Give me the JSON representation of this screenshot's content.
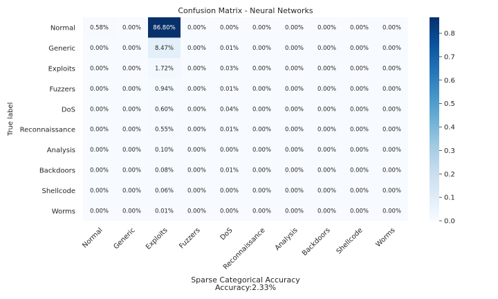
{
  "chart_data": {
    "type": "heatmap",
    "title": "Confusion Matrix - Neural Networks",
    "ylabel": "True label",
    "xlabel_line1": "Sparse Categorical Accuracy",
    "xlabel_line2": "Accuracy:2.33%",
    "row_labels": [
      "Normal",
      "Generic",
      "Exploits",
      "Fuzzers",
      "DoS",
      "Reconnaissance",
      "Analysis",
      "Backdoors",
      "Shellcode",
      "Worms"
    ],
    "col_labels": [
      "Normal",
      "Generic",
      "Exploits",
      "Fuzzers",
      "DoS",
      "Reconnaissance",
      "Analysis",
      "Backdoors",
      "Shellcode",
      "Worms"
    ],
    "values": [
      [
        0.0058,
        0.0,
        0.868,
        0.0,
        0.0,
        0.0,
        0.0,
        0.0,
        0.0,
        0.0
      ],
      [
        0.0,
        0.0,
        0.0847,
        0.0,
        0.0001,
        0.0,
        0.0,
        0.0,
        0.0,
        0.0
      ],
      [
        0.0,
        0.0,
        0.0172,
        0.0,
        0.0003,
        0.0,
        0.0,
        0.0,
        0.0,
        0.0
      ],
      [
        0.0,
        0.0,
        0.0094,
        0.0,
        0.0001,
        0.0,
        0.0,
        0.0,
        0.0,
        0.0
      ],
      [
        0.0,
        0.0,
        0.006,
        0.0,
        0.0004,
        0.0,
        0.0,
        0.0,
        0.0,
        0.0
      ],
      [
        0.0,
        0.0,
        0.0055,
        0.0,
        0.0001,
        0.0,
        0.0,
        0.0,
        0.0,
        0.0
      ],
      [
        0.0,
        0.0,
        0.001,
        0.0,
        0.0,
        0.0,
        0.0,
        0.0,
        0.0,
        0.0
      ],
      [
        0.0,
        0.0,
        0.0008,
        0.0,
        0.0001,
        0.0,
        0.0,
        0.0,
        0.0,
        0.0
      ],
      [
        0.0,
        0.0,
        0.0006,
        0.0,
        0.0,
        0.0,
        0.0,
        0.0,
        0.0,
        0.0
      ],
      [
        0.0,
        0.0,
        0.0001,
        0.0,
        0.0,
        0.0,
        0.0,
        0.0,
        0.0,
        0.0
      ]
    ],
    "cell_labels": [
      [
        "0.58%",
        "0.00%",
        "86.80%",
        "0.00%",
        "0.00%",
        "0.00%",
        "0.00%",
        "0.00%",
        "0.00%",
        "0.00%"
      ],
      [
        "0.00%",
        "0.00%",
        "8.47%",
        "0.00%",
        "0.01%",
        "0.00%",
        "0.00%",
        "0.00%",
        "0.00%",
        "0.00%"
      ],
      [
        "0.00%",
        "0.00%",
        "1.72%",
        "0.00%",
        "0.03%",
        "0.00%",
        "0.00%",
        "0.00%",
        "0.00%",
        "0.00%"
      ],
      [
        "0.00%",
        "0.00%",
        "0.94%",
        "0.00%",
        "0.01%",
        "0.00%",
        "0.00%",
        "0.00%",
        "0.00%",
        "0.00%"
      ],
      [
        "0.00%",
        "0.00%",
        "0.60%",
        "0.00%",
        "0.04%",
        "0.00%",
        "0.00%",
        "0.00%",
        "0.00%",
        "0.00%"
      ],
      [
        "0.00%",
        "0.00%",
        "0.55%",
        "0.00%",
        "0.01%",
        "0.00%",
        "0.00%",
        "0.00%",
        "0.00%",
        "0.00%"
      ],
      [
        "0.00%",
        "0.00%",
        "0.10%",
        "0.00%",
        "0.00%",
        "0.00%",
        "0.00%",
        "0.00%",
        "0.00%",
        "0.00%"
      ],
      [
        "0.00%",
        "0.00%",
        "0.08%",
        "0.00%",
        "0.01%",
        "0.00%",
        "0.00%",
        "0.00%",
        "0.00%",
        "0.00%"
      ],
      [
        "0.00%",
        "0.00%",
        "0.06%",
        "0.00%",
        "0.00%",
        "0.00%",
        "0.00%",
        "0.00%",
        "0.00%",
        "0.00%"
      ],
      [
        "0.00%",
        "0.00%",
        "0.01%",
        "0.00%",
        "0.00%",
        "0.00%",
        "0.00%",
        "0.00%",
        "0.00%",
        "0.00%"
      ]
    ],
    "colorbar": {
      "colormap": "Blues",
      "vmin": 0.0,
      "vmax": 0.868,
      "ticks": [
        0.0,
        0.1,
        0.2,
        0.3,
        0.4,
        0.5,
        0.6,
        0.7,
        0.8
      ],
      "tick_labels": [
        "0.0",
        "0.1",
        "0.2",
        "0.3",
        "0.4",
        "0.5",
        "0.6",
        "0.7",
        "0.8"
      ]
    },
    "colors": {
      "low": "#f7fbff",
      "high": "#08306b",
      "text_dark": "#262626",
      "text_light": "#ffffff"
    }
  }
}
